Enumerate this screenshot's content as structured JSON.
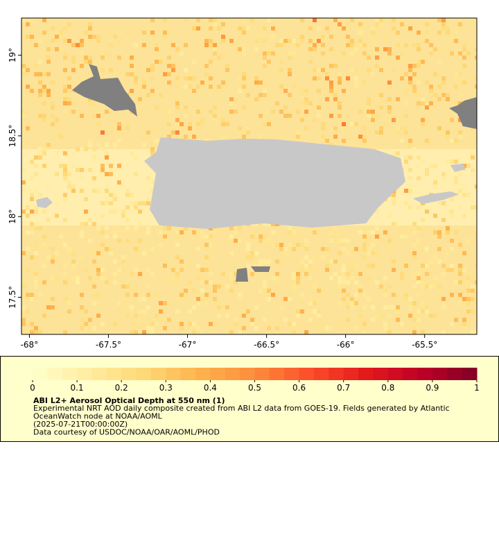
{
  "map": {
    "xticks": [
      {
        "value": -68,
        "label": "-68°"
      },
      {
        "value": -67.5,
        "label": "-67.5°"
      },
      {
        "value": -67,
        "label": "-67°"
      },
      {
        "value": -66.5,
        "label": "-66.5°"
      },
      {
        "value": -66,
        "label": "-66°"
      },
      {
        "value": -65.5,
        "label": "-65.5°"
      }
    ],
    "yticks": [
      {
        "value": 19,
        "label": "19°"
      },
      {
        "value": 18.5,
        "label": "18.5°"
      },
      {
        "value": 18,
        "label": "18°"
      },
      {
        "value": 17.5,
        "label": "17.5°"
      }
    ],
    "xlim": [
      -68.05,
      -65.17
    ],
    "ylim": [
      17.27,
      19.23
    ]
  },
  "colorbar": {
    "colors": [
      "#ffffcc",
      "#ffeda0",
      "#fed976",
      "#feb24c",
      "#fd8d3c",
      "#fc4e2a",
      "#e31a1c",
      "#bd0026",
      "#800026"
    ],
    "lim": [
      0,
      1
    ],
    "ticks": [
      0,
      0.1,
      0.2,
      0.3,
      0.4,
      0.5,
      0.6,
      0.7,
      0.8,
      0.9,
      1
    ]
  },
  "title": "ABI L2+ Aerosol Optical Depth at 550 nm (1)",
  "description": [
    "Experimental NRT AOD daily composite created from ABI L2 data from GOES-19. Fields generated by Atlantic",
    "OceanWatch node at NOAA/AOML",
    "(2025-07-21T00:00:00Z)",
    "Data courtesy of USDOC/NOAA/OAR/AOML/PHOD"
  ]
}
